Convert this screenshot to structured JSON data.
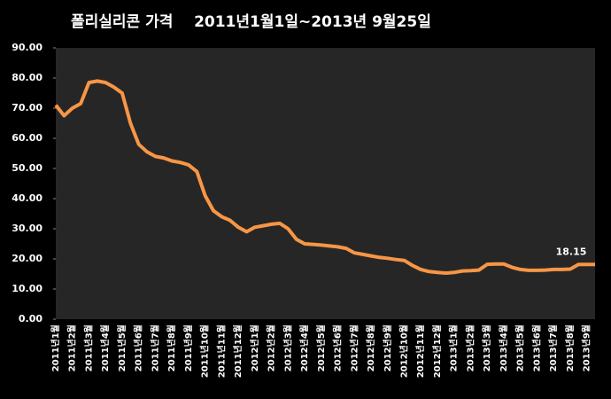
{
  "chart_data": {
    "type": "line",
    "title": "폴리실리콘 가격    2011년1월1일~2013년 9월25일",
    "categories": [
      "2011년1월",
      null,
      "2011년2월",
      null,
      "2011년3월",
      null,
      "2011년4월",
      null,
      "2011년5월",
      null,
      "2011년6월",
      null,
      "2011년7월",
      null,
      "2011년8월",
      null,
      "2011년9월",
      null,
      "2011년10월",
      null,
      "2011년11월",
      null,
      "2011년12월",
      null,
      "2012년1월",
      null,
      "2012년2월",
      null,
      "2012년3월",
      null,
      "2012년4월",
      null,
      "2012년5월",
      null,
      "2012년6월",
      null,
      "2012년7월",
      null,
      "2012년8월",
      null,
      "2012년9월",
      null,
      "2012년10월",
      null,
      "2012년11월",
      null,
      "2012년12월",
      null,
      "2013년1월",
      null,
      "2013년2월",
      null,
      "2013년3월",
      null,
      "2013년4월",
      null,
      "2013년5월",
      null,
      "2013년6월",
      null,
      "2013년7월",
      null,
      "2013년8월",
      null,
      "2013년9월",
      null
    ],
    "values": [
      71,
      67.5,
      70,
      71.5,
      78.5,
      79,
      78.5,
      77,
      75,
      65,
      58,
      55.5,
      54,
      53.5,
      52.5,
      52,
      51.2,
      49,
      41,
      36,
      34,
      32.8,
      30.5,
      29,
      30.5,
      31,
      31.5,
      31.8,
      30,
      26.5,
      25,
      24.8,
      24.6,
      24.3,
      24,
      23.5,
      22,
      21.5,
      21,
      20.5,
      20.2,
      19.8,
      19.5,
      17.8,
      16.5,
      15.8,
      15.5,
      15.3,
      15.5,
      16,
      16.1,
      16.3,
      18.2,
      18.3,
      18.3,
      17.2,
      16.5,
      16.2,
      16.2,
      16.3,
      16.5,
      16.5,
      16.6,
      18.15,
      18.15,
      18.15
    ],
    "color": "#f79646",
    "ylim": [
      0,
      90
    ],
    "yticks": [
      {
        "value": 0,
        "label": "0.00"
      },
      {
        "value": 10,
        "label": "10.00"
      },
      {
        "value": 20,
        "label": "20.00"
      },
      {
        "value": 30,
        "label": "30.00"
      },
      {
        "value": 40,
        "label": "40.00"
      },
      {
        "value": 50,
        "label": "50.00"
      },
      {
        "value": 60,
        "label": "60.00"
      },
      {
        "value": 70,
        "label": "70.00"
      },
      {
        "value": 80,
        "label": "80.00"
      },
      {
        "value": 90,
        "label": "90.00"
      }
    ],
    "grid": false
  }
}
